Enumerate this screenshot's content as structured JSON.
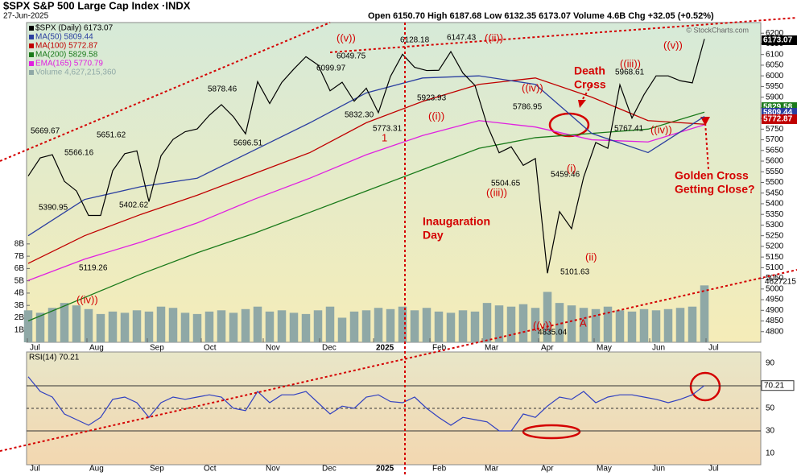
{
  "chart_data": [
    {
      "type": "line",
      "title": "$SPX S&P 500 Large Cap Index ·INDX",
      "date": "27-Jun-2025",
      "header": "Open 6150.70  High 6187.68  Low 6132.35  6173.07  Volume 4.6B  Chg +32.05 (+0.52%)",
      "watermark": "© StockCharts.com",
      "x_labels": [
        "Jul",
        "Aug",
        "Sep",
        "Oct",
        "Nov",
        "Dec",
        "2025",
        "Feb",
        "Mar",
        "Apr",
        "May",
        "Jun",
        "Jul"
      ],
      "ylim": [
        4750,
        6250
      ],
      "yticks": [
        4800,
        4850,
        4900,
        4950,
        5000,
        5050,
        5100,
        5150,
        5200,
        5250,
        5300,
        5350,
        5400,
        5450,
        5500,
        5550,
        5600,
        5650,
        5700,
        5750,
        5800,
        5850,
        5900,
        5950,
        6000,
        6050,
        6100,
        6150,
        6200
      ],
      "y2lim": [
        0,
        26
      ],
      "y2ticks": [
        {
          "value": 1,
          "label": "1B"
        },
        {
          "value": 2,
          "label": "2B"
        },
        {
          "value": 3,
          "label": "3B"
        },
        {
          "value": 4,
          "label": "4B"
        },
        {
          "value": 5,
          "label": "5B"
        },
        {
          "value": 6,
          "label": "6B"
        },
        {
          "value": 7,
          "label": "7B"
        },
        {
          "value": 8,
          "label": "8B"
        }
      ],
      "series": [
        {
          "name": "$SPX (Daily) 6173.07",
          "color": "#000000",
          "last": 6173.07,
          "values": [
            5530,
            5615,
            5630,
            5505,
            5460,
            5345,
            5345,
            5555,
            5635,
            5648,
            5410,
            5625,
            5702,
            5738,
            5751,
            5815,
            5865,
            5808,
            5728,
            5973,
            5870,
            5969,
            6032,
            6090,
            6051,
            5930,
            5970,
            5881,
            5942,
            5827,
            5997,
            6101,
            6040,
            6025,
            6026,
            6114,
            6013,
            5955,
            5770,
            5639,
            5667,
            5580,
            5612,
            5074,
            5363,
            5283,
            5525,
            5687,
            5660,
            5958,
            5802,
            5912,
            6000,
            6000,
            5977,
            5967,
            6173.07
          ]
        },
        {
          "name": "MA(50) 5809.44",
          "color": "#2b3fa0",
          "last": 5809.44,
          "values": [
            5250,
            5420,
            5480,
            5520,
            5650,
            5780,
            5920,
            5990,
            6000,
            5960,
            5730,
            5640,
            5809.44
          ]
        },
        {
          "name": "MA(100) 5772.87",
          "color": "#c00000",
          "last": 5772.87,
          "values": [
            5120,
            5250,
            5350,
            5440,
            5540,
            5640,
            5780,
            5880,
            5960,
            5990,
            5900,
            5790,
            5772.87
          ]
        },
        {
          "name": "MA(200) 5829.58",
          "color": "#1a7a1a",
          "last": 5829.58,
          "values": [
            4850,
            4960,
            5070,
            5170,
            5260,
            5360,
            5460,
            5560,
            5660,
            5710,
            5730,
            5750,
            5829.58
          ]
        },
        {
          "name": "EMA(165) 5770.79",
          "color": "#e020e0",
          "last": 5770.79,
          "values": [
            5040,
            5140,
            5220,
            5310,
            5420,
            5520,
            5630,
            5720,
            5790,
            5760,
            5700,
            5690,
            5770.79
          ]
        },
        {
          "name": "Volume 4,627,215,360",
          "color": "#8fa8a6",
          "axis": "y2",
          "last_label": "4627215",
          "values": [
            2.6,
            2.4,
            2.8,
            3.2,
            3.0,
            2.7,
            2.3,
            2.5,
            2.4,
            2.6,
            2.5,
            2.9,
            2.8,
            2.4,
            2.3,
            2.5,
            2.6,
            2.4,
            2.7,
            2.9,
            2.5,
            2.6,
            2.4,
            2.3,
            2.6,
            2.9,
            2.0,
            2.5,
            2.6,
            2.8,
            2.7,
            2.9,
            2.6,
            2.8,
            2.5,
            2.4,
            2.6,
            2.5,
            3.2,
            3.0,
            2.9,
            3.1,
            2.8,
            4.1,
            3.2,
            3.0,
            2.8,
            2.7,
            2.9,
            2.6,
            2.5,
            2.7,
            2.6,
            2.7,
            2.8,
            2.9,
            4.627215
          ]
        }
      ],
      "price_labels": [
        5669.67,
        5566.16,
        5390.95,
        5119.26,
        5651.62,
        5402.62,
        5878.46,
        5696.51,
        6099.97,
        6049.75,
        5832.3,
        5773.31,
        6128.18,
        6147.43,
        5923.93,
        5786.95,
        5504.65,
        5459.46,
        5101.63,
        4835.04,
        5968.61,
        5767.41
      ],
      "price_label_text": [
        "5669.67",
        "5566.16",
        "5390.95",
        "5119.26",
        "5651.62",
        "5402.62",
        "5878.46",
        "5696.51",
        "6099.97",
        "6049.75",
        "5832.30",
        "5773.31",
        "6128.18",
        "6147.43",
        "5923.93",
        "5786.95",
        "5504.65",
        "5459.46",
        "5101.63",
        "4835.04",
        "5968.61",
        "5767.41"
      ],
      "waves": [
        "((iv))",
        "((v))",
        "((ii))",
        "1",
        "((i))",
        "((iii))",
        "((iv))",
        "(i)",
        "(ii)",
        "((v))",
        "A",
        "((iii))",
        "((v))",
        "((iv))"
      ],
      "notes": {
        "death": [
          "Death",
          "Cross"
        ],
        "golden": [
          "Golden Cross",
          "Getting Close?"
        ],
        "inauguration": [
          "Inaugaration",
          "Day"
        ]
      }
    },
    {
      "type": "line",
      "title": "RSI(14) 70.21",
      "ylim": [
        0,
        100
      ],
      "yticks": [
        10,
        30,
        50,
        70,
        90
      ],
      "series": [
        {
          "name": "RSI(14)",
          "color": "#3040c0",
          "last": 70.21,
          "values": [
            78,
            65,
            60,
            45,
            40,
            35,
            42,
            58,
            60,
            55,
            42,
            55,
            60,
            58,
            60,
            62,
            60,
            50,
            48,
            65,
            55,
            62,
            62,
            65,
            55,
            45,
            52,
            50,
            60,
            62,
            56,
            55,
            60,
            50,
            42,
            35,
            42,
            40,
            38,
            30,
            30,
            45,
            42,
            52,
            60,
            58,
            65,
            55,
            60,
            62,
            62,
            60,
            58,
            55,
            58,
            62,
            70.21
          ]
        }
      ]
    }
  ]
}
